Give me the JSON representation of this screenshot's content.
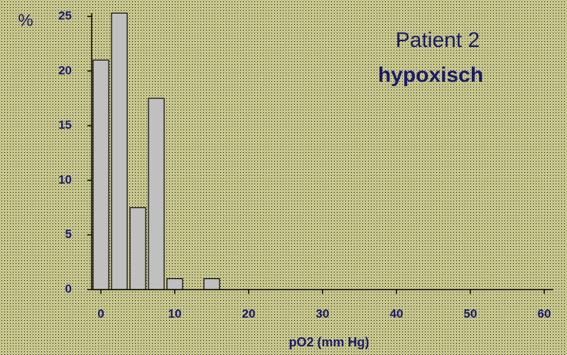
{
  "chart_data": {
    "type": "histogram",
    "title": "Patient  2",
    "subtitle": "hypoxisch",
    "y_label": "%",
    "x_label": "pO2  (mm Hg)",
    "bins": [
      -1.25,
      1.25,
      3.75,
      6.25,
      8.75,
      11.25,
      13.75,
      16.25
    ],
    "values": [
      21,
      25.3,
      7.5,
      17.5,
      1,
      0,
      1
    ],
    "color": "#c0c0c0",
    "xlim": [
      -1.25,
      61.25
    ],
    "ylim": [
      0,
      25.3
    ],
    "xticks": [
      0,
      10,
      20,
      30,
      40,
      50,
      60
    ],
    "yticks": [
      0,
      5,
      10,
      15,
      20,
      25
    ],
    "grid": false
  }
}
